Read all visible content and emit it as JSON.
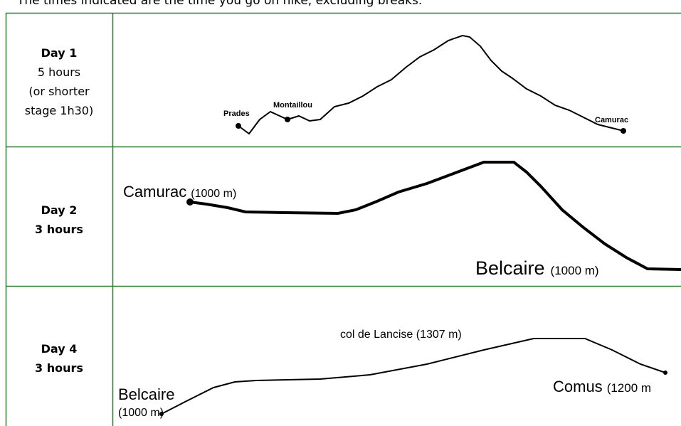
{
  "intro": "The times indicated are the time you go on hike, excluding breaks.",
  "days": [
    {
      "day": "Day 1",
      "duration": [
        "5 hours",
        "(or shorter",
        "stage 1h30)"
      ],
      "places": [
        "Prades",
        "Montaillou",
        "Camurac"
      ]
    },
    {
      "day": "Day 2",
      "duration": [
        "3 hours"
      ],
      "places": [
        "Camurac",
        "(1000 m)",
        "Belcaire",
        "(1000 m)"
      ]
    },
    {
      "day": "Day 4",
      "duration": [
        "3 hours"
      ],
      "places": [
        "col de Lancise (1307 m)",
        "Belcaire",
        "(1000 m)",
        "Comus",
        "(1200 m"
      ]
    }
  ]
}
